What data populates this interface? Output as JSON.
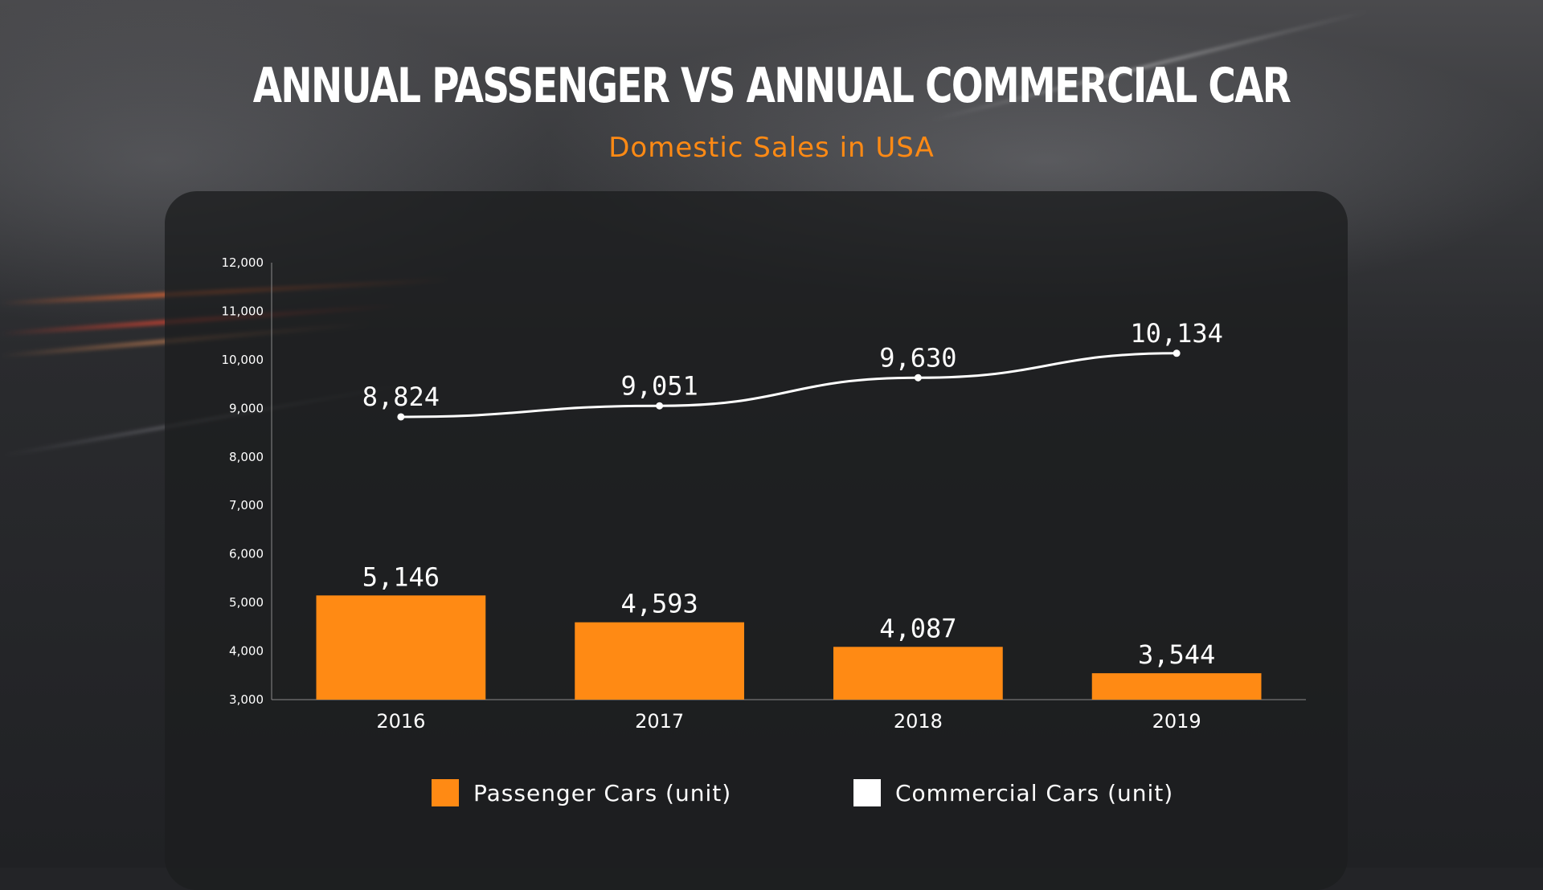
{
  "title": "Annual Passenger vs Annual Commercial Car",
  "subtitle": "Domestic Sales in USA",
  "colors": {
    "bar": "#ff8a14",
    "line": "#ffffff"
  },
  "chart_data": {
    "type": "bar",
    "title": "Annual Passenger vs Annual Commercial Car",
    "subtitle": "Domestic Sales in USA",
    "categories": [
      "2016",
      "2017",
      "2018",
      "2019"
    ],
    "series": [
      {
        "name": "Passenger Cars (unit)",
        "type": "bar",
        "values": [
          5146,
          4593,
          4087,
          3544
        ],
        "labels": [
          "5,146",
          "4,593",
          "4,087",
          "3,544"
        ]
      },
      {
        "name": "Commercial Cars (unit)",
        "type": "line",
        "values": [
          8824,
          9051,
          9630,
          10134
        ],
        "labels": [
          "8,824",
          "9,051",
          "9,630",
          "10,134"
        ]
      }
    ],
    "ylim": [
      3000,
      12000
    ],
    "yticks": [
      3000,
      4000,
      5000,
      6000,
      7000,
      8000,
      9000,
      10000,
      11000,
      12000
    ],
    "ytick_labels": [
      "3,000",
      "4,000",
      "5,000",
      "6,000",
      "7,000",
      "8,000",
      "9,000",
      "10,000",
      "11,000",
      "12,000"
    ],
    "xlabel": "",
    "ylabel": "",
    "grid": false,
    "legend": "bottom"
  }
}
